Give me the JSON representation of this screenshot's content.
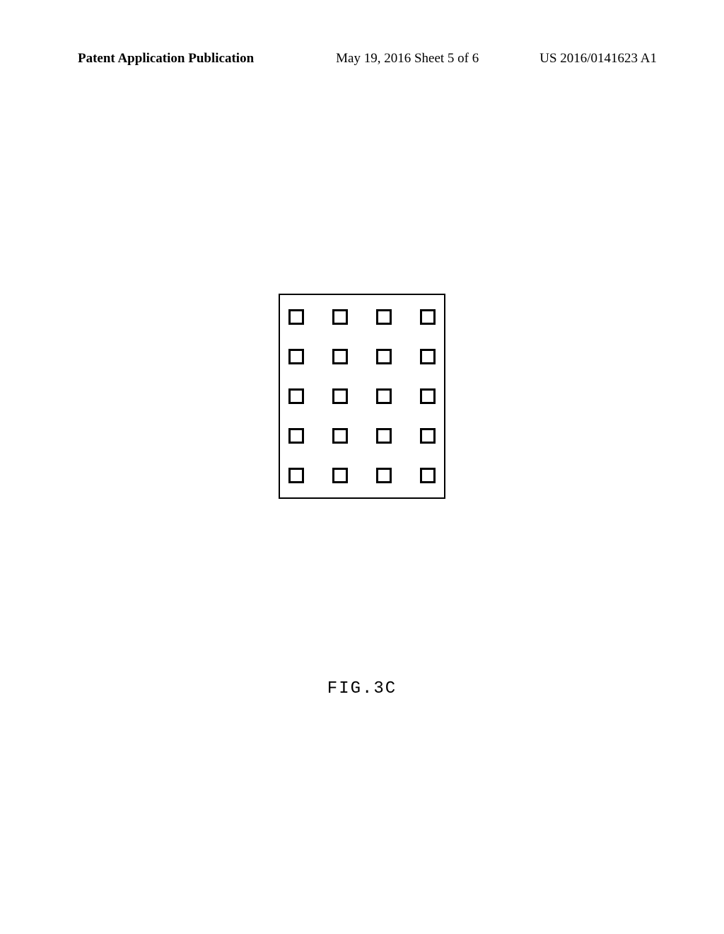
{
  "header": {
    "left": "Patent Application Publication",
    "center": "May 19, 2016  Sheet 5 of 6",
    "right": "US 2016/0141623 A1"
  },
  "figure": {
    "label": "FIG.3C",
    "grid": {
      "rows": 5,
      "cols": 4,
      "border_color": "#000000",
      "border_width": 2,
      "square_size": 22,
      "square_border_width": 3,
      "square_border_color": "#000000",
      "background_color": "#ffffff",
      "gap_row": 34,
      "gap_col": 40
    }
  }
}
